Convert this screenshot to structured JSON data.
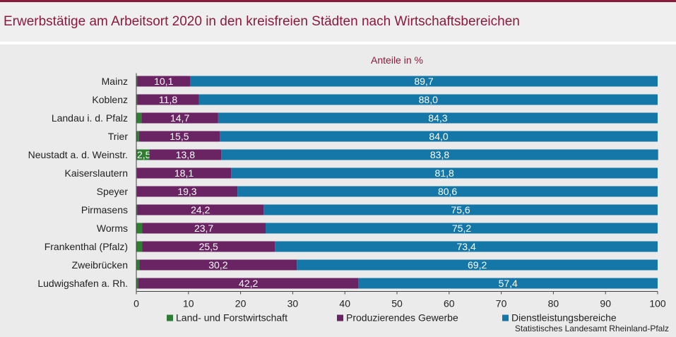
{
  "chart_data": {
    "type": "bar",
    "orientation": "horizontal",
    "stacked": true,
    "title": "Erwerbstätige am Arbeitsort 2020 in den kreisfreien Städten nach Wirtschaftsbereichen",
    "subtitle": "Anteile in %",
    "categories": [
      "Mainz",
      "Koblenz",
      "Landau i. d. Pfalz",
      "Trier",
      "Neustadt a. d. Weinstr.",
      "Kaiserslautern",
      "Speyer",
      "Pirmasens",
      "Worms",
      "Frankenthal (Pfalz)",
      "Zweibrücken",
      "Ludwigshafen a. Rh."
    ],
    "series": [
      {
        "name": "Land- und Forstwirtschaft",
        "color": "#2e7d32",
        "values": [
          0.2,
          0.2,
          1.0,
          0.5,
          2.5,
          0.1,
          0.1,
          0.2,
          1.1,
          1.1,
          0.6,
          0.4
        ],
        "labels": [
          "",
          "",
          "",
          "",
          "2,5",
          "",
          "",
          "",
          "",
          "",
          "",
          ""
        ]
      },
      {
        "name": "Produzierendes Gewerbe",
        "color": "#6b2463",
        "values": [
          10.1,
          11.8,
          14.7,
          15.5,
          13.8,
          18.1,
          19.3,
          24.2,
          23.7,
          25.5,
          30.2,
          42.2
        ],
        "labels": [
          "10,1",
          "11,8",
          "14,7",
          "15,5",
          "13,8",
          "18,1",
          "19,3",
          "24,2",
          "23,7",
          "25,5",
          "30,2",
          "42,2"
        ]
      },
      {
        "name": "Dienstleistungsbereiche",
        "color": "#1477a8",
        "values": [
          89.7,
          88.0,
          84.3,
          84.0,
          83.8,
          81.8,
          80.6,
          75.6,
          75.2,
          73.4,
          69.2,
          57.4
        ],
        "labels": [
          "89,7",
          "88,0",
          "84,3",
          "84,0",
          "83,8",
          "81,8",
          "80,6",
          "75,6",
          "75,2",
          "73,4",
          "69,2",
          "57,4"
        ]
      }
    ],
    "xlim": [
      0,
      100
    ],
    "xticks": [
      "0",
      "10",
      "20",
      "30",
      "40",
      "50",
      "60",
      "70",
      "80",
      "90",
      "100"
    ],
    "legend_position": "bottom",
    "grid": false,
    "source": "Statistisches Landesamt Rheinland-Pfalz"
  }
}
